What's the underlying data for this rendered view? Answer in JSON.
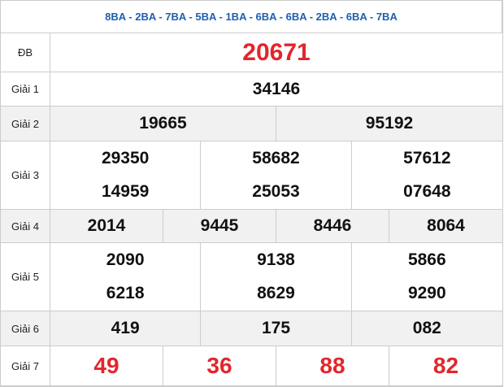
{
  "header": {
    "title": "8BA - 2BA - 7BA - 5BA - 1BA - 6BA - 6BA - 2BA - 6BA - 7BA"
  },
  "table": {
    "rows": [
      {
        "label": "ĐB",
        "numbers": [
          "20671"
        ]
      },
      {
        "label": "Giải 1",
        "numbers": [
          "34146"
        ]
      },
      {
        "label": "Giải 2",
        "numbers": [
          "19665",
          "95192"
        ]
      },
      {
        "label": "Giải 3",
        "numbers": [
          "29350",
          "58682",
          "57612",
          "14959",
          "25053",
          "07648"
        ]
      },
      {
        "label": "Giải 4",
        "numbers": [
          "2014",
          "9445",
          "8446",
          "8064"
        ]
      },
      {
        "label": "Giải 5",
        "numbers": [
          "2090",
          "9138",
          "5866",
          "6218",
          "8629",
          "9290"
        ]
      },
      {
        "label": "Giải 6",
        "numbers": [
          "419",
          "175",
          "082"
        ]
      },
      {
        "label": "Giải 7",
        "numbers": [
          "49",
          "36",
          "88",
          "82"
        ]
      }
    ]
  }
}
